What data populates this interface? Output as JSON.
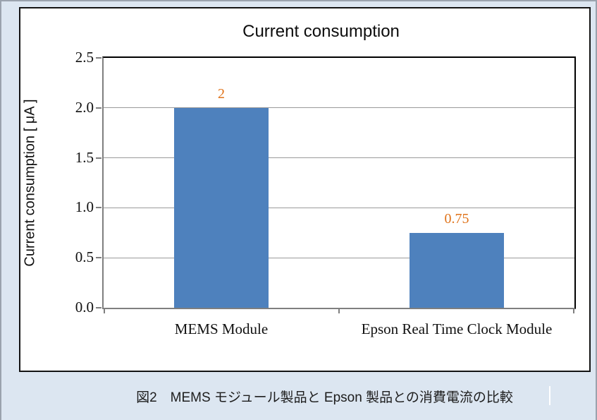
{
  "page": {
    "background_color": "#DCE6F1",
    "caption": "図2　MEMS モジュール製品と Epson 製品との消費電流の比較"
  },
  "chart_data": {
    "type": "bar",
    "title": "Current consumption",
    "ylabel": "Current consumption [ μA ]",
    "xlabel": "",
    "categories": [
      "MEMS Module",
      "Epson Real Time Clock Module"
    ],
    "values": [
      2,
      0.75
    ],
    "value_labels": [
      "2",
      "0.75"
    ],
    "ylim": [
      0,
      2.5
    ],
    "yticks": [
      "0.0",
      "0.5",
      "1.0",
      "1.5",
      "2.0",
      "2.5"
    ],
    "grid": true,
    "legend": "none",
    "bar_color": "#4E81BD",
    "value_label_color": "#E0731A"
  }
}
